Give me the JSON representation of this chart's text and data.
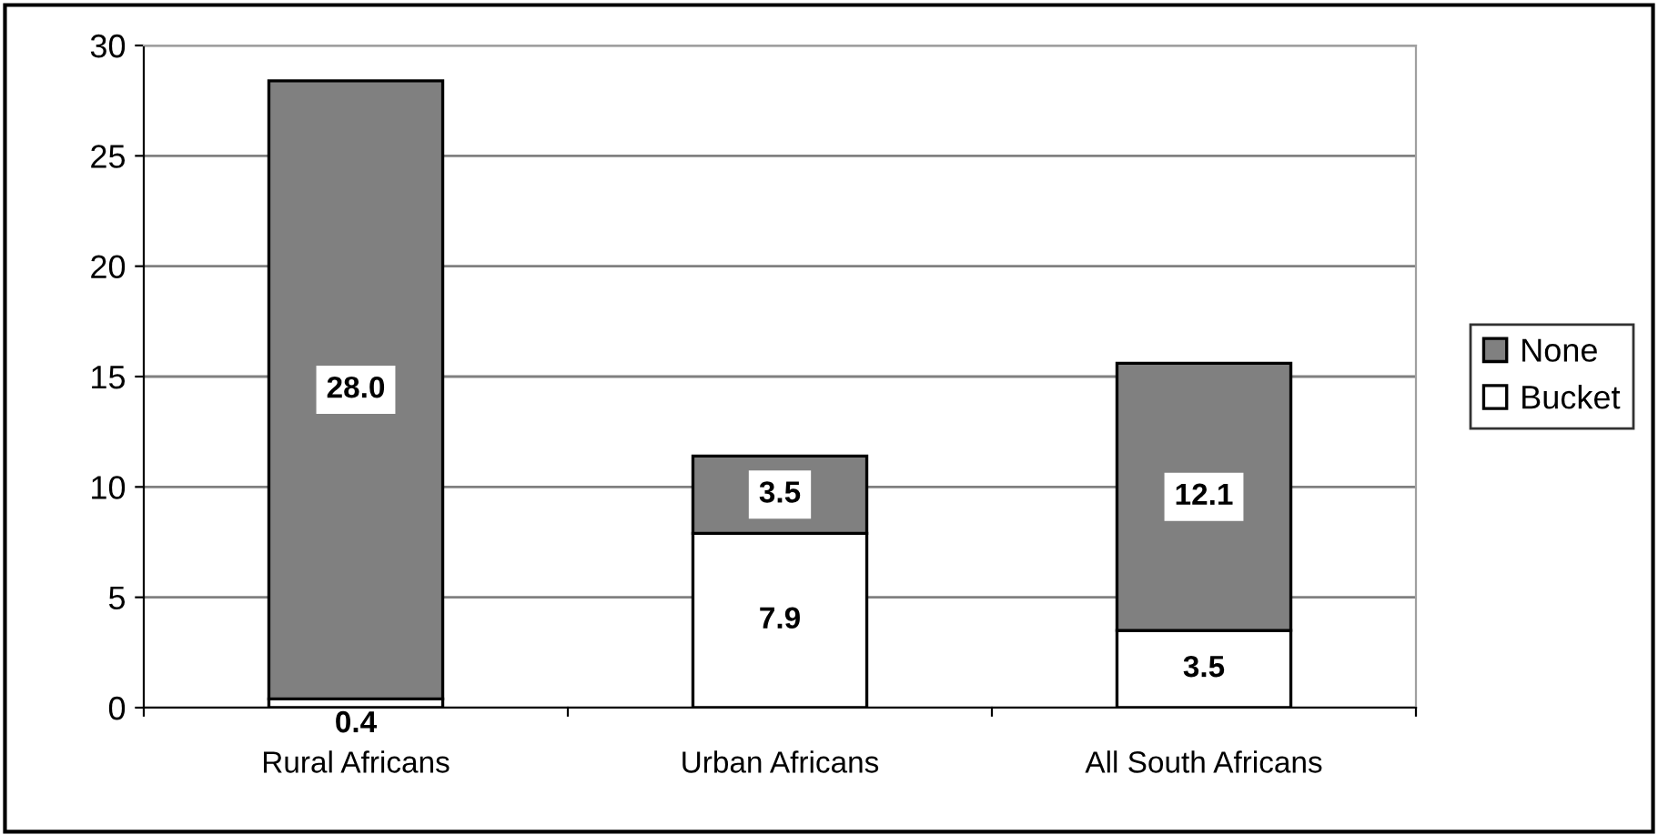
{
  "chart_data": {
    "type": "bar",
    "stacked": true,
    "categories": [
      "Rural Africans",
      "Urban Africans",
      "All South Africans"
    ],
    "series": [
      {
        "name": "Bucket",
        "color": "#ffffff",
        "values": [
          0.4,
          7.9,
          3.5
        ],
        "value_labels": [
          "0.4",
          "7.9",
          "3.5"
        ]
      },
      {
        "name": "None",
        "color": "#808080",
        "values": [
          28.0,
          3.5,
          12.1
        ],
        "value_labels": [
          "28.0",
          "3.5",
          "12.1"
        ]
      }
    ],
    "ylim": [
      0,
      30
    ],
    "yticks": [
      0,
      5,
      10,
      15,
      20,
      25,
      30
    ],
    "grid": "y",
    "legend": "right"
  }
}
